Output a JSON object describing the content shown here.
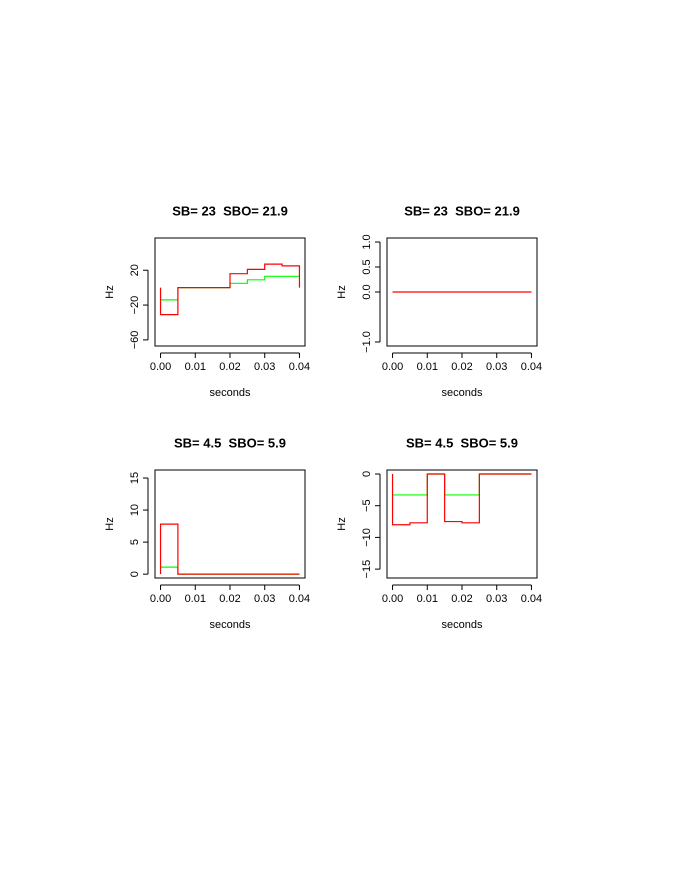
{
  "chart_data": [
    {
      "type": "line",
      "drawstyle": "steps-post",
      "title": "SB= 23  SBO= 21.9",
      "xlabel": "seconds",
      "ylabel": "Hz",
      "xlim": [
        -0.0016,
        0.0416
      ],
      "xticks": [
        {
          "value": 0,
          "label": "0.00"
        },
        0.01,
        0.02,
        0.03,
        0.04
      ],
      "ylim": [
        -67,
        57
      ],
      "yticks": [
        {
          "value": -60,
          "label": "−60"
        },
        {
          "value": -20,
          "label": "−20"
        },
        20
      ],
      "series": [
        {
          "color": "#00ff00",
          "x": [
            0,
            0.005,
            0.02,
            0.025,
            0.03,
            0.04
          ],
          "values": [
            -14,
            0,
            5,
            9,
            13,
            13
          ]
        },
        {
          "color": "#ff0000",
          "x": [
            0,
            0,
            0.005,
            0.02,
            0.025,
            0.03,
            0.035,
            0.04,
            0.04
          ],
          "values": [
            0,
            -31,
            0,
            16,
            21,
            27,
            25,
            25,
            0
          ]
        }
      ]
    },
    {
      "type": "line",
      "drawstyle": "steps-post",
      "title": "SB= 23  SBO= 21.9",
      "xlabel": "seconds",
      "ylabel": "Hz",
      "xlim": [
        -0.0016,
        0.0416
      ],
      "xticks": [
        {
          "value": 0,
          "label": "0.00"
        },
        0.01,
        0.02,
        0.03,
        0.04
      ],
      "ylim": [
        -1.08,
        1.08
      ],
      "yticks": [
        {
          "value": -1,
          "label": "−1.0"
        },
        {
          "value": 0,
          "label": "0.0"
        },
        0.5,
        {
          "value": 1,
          "label": "1.0"
        }
      ],
      "series": [
        {
          "color": "#ff0000",
          "x": [
            0,
            0.04
          ],
          "values": [
            0,
            0
          ]
        }
      ]
    },
    {
      "type": "line",
      "drawstyle": "steps-post",
      "title": "SB= 4.5  SBO= 5.9",
      "xlabel": "seconds",
      "ylabel": "Hz",
      "xlim": [
        -0.0016,
        0.0416
      ],
      "xticks": [
        {
          "value": 0,
          "label": "0.00"
        },
        0.01,
        0.02,
        0.03,
        0.04
      ],
      "ylim": [
        -0.6,
        16.25
      ],
      "yticks": [
        0,
        5,
        10,
        15
      ],
      "series": [
        {
          "color": "#00ff00",
          "x": [
            0,
            0.005,
            0.04
          ],
          "values": [
            1.1,
            0,
            0
          ]
        },
        {
          "color": "#ff0000",
          "x": [
            0,
            0,
            0.005,
            0.04
          ],
          "values": [
            0,
            7.8,
            0,
            0
          ]
        }
      ]
    },
    {
      "type": "line",
      "drawstyle": "steps-post",
      "title": "SB= 4.5  SBO= 5.9",
      "xlabel": "seconds",
      "ylabel": "Hz",
      "xlim": [
        -0.0016,
        0.0416
      ],
      "xticks": [
        {
          "value": 0,
          "label": "0.00"
        },
        0.01,
        0.02,
        0.03,
        0.04
      ],
      "ylim": [
        -16.4,
        0.63
      ],
      "yticks": [
        {
          "value": -15,
          "label": "−15"
        },
        {
          "value": -10,
          "label": "−10"
        },
        {
          "value": -5,
          "label": "−5"
        },
        0
      ],
      "series": [
        {
          "color": "#00ff00",
          "x": [
            0,
            0.01,
            0.015,
            0.025,
            0.04
          ],
          "values": [
            -3.3,
            0,
            -3.3,
            0,
            0
          ]
        },
        {
          "color": "#ff0000",
          "x": [
            0,
            0,
            0.005,
            0.01,
            0.015,
            0.02,
            0.025,
            0.04
          ],
          "values": [
            0,
            -8,
            -7.7,
            0,
            -7.5,
            -7.7,
            0,
            0
          ]
        }
      ]
    }
  ]
}
